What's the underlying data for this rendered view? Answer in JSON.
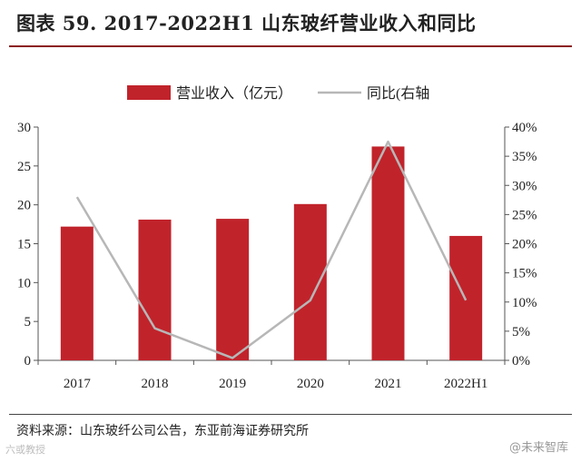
{
  "header": {
    "title": "图表 59. 2017-2022H1 山东玻纤营业收入和同比"
  },
  "footer": {
    "source": "资料来源：山东玻纤公司公告，东亚前海证券研究所",
    "watermark_left": "六或教授",
    "watermark_right": "@未来智库"
  },
  "colors": {
    "bar": "#c1232b",
    "line": "#b7b7b7",
    "rule": "#8b1a1a"
  },
  "chart_data": {
    "type": "bar",
    "title": "",
    "categories": [
      "2017",
      "2018",
      "2019",
      "2020",
      "2021",
      "2022H1"
    ],
    "series": [
      {
        "name": "营业收入（亿元）",
        "kind": "bar",
        "axis": "left",
        "values": [
          17.2,
          18.1,
          18.2,
          20.1,
          27.5,
          16.0
        ]
      },
      {
        "name": "同比(右轴",
        "kind": "line",
        "axis": "right",
        "values": [
          28.0,
          5.5,
          0.4,
          10.3,
          37.5,
          10.3
        ]
      }
    ],
    "ylim": [
      0,
      30
    ],
    "yticks": [
      "0",
      "5",
      "10",
      "15",
      "20",
      "25",
      "30"
    ],
    "y2lim": [
      0,
      40
    ],
    "y2ticks": [
      "0%",
      "5%",
      "10%",
      "15%",
      "20%",
      "25%",
      "30%",
      "35%",
      "40%"
    ],
    "legend": "top-center"
  }
}
